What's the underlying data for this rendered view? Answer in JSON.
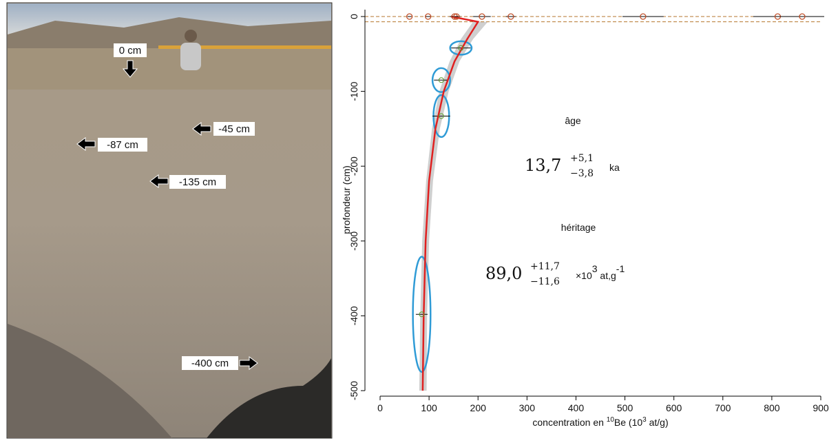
{
  "photo": {
    "labels": [
      "0 cm",
      "-45 cm",
      "-87 cm",
      "-135 cm",
      "-400 cm"
    ]
  },
  "chart_data": {
    "type": "profile",
    "x_label": {
      "pre": "concentration en ",
      "sup1": "10",
      "mid": "Be (10",
      "sup2": "3",
      "post": " at/g)"
    },
    "y_label": "profondeur (cm)",
    "xlim": [
      0,
      900
    ],
    "xticks": [
      0,
      100,
      200,
      300,
      400,
      500,
      600,
      700,
      800,
      900
    ],
    "ylim": [
      -500,
      0
    ],
    "yticks": [
      0,
      -100,
      -200,
      -300,
      -400,
      -500
    ],
    "reference_depths": [
      0,
      -7
    ],
    "reference_color": "#b5762d",
    "surface_samples": {
      "color": "#c0502a",
      "x": [
        60,
        98,
        152,
        156,
        208,
        267,
        537,
        812,
        862
      ],
      "x_error": [
        4,
        6,
        10,
        8,
        18,
        10,
        42,
        50,
        45
      ],
      "y": [
        0,
        0,
        0,
        0,
        0,
        0,
        0,
        0,
        0
      ]
    },
    "depth_samples": {
      "color": "#5a9a2a",
      "x": [
        165,
        125,
        125,
        85
      ],
      "y": [
        -42,
        -85,
        -133,
        -398
      ],
      "x_error": [
        20,
        15,
        18,
        12
      ],
      "ellipse_color": "#2f9bd6",
      "ellipse_x_error": [
        22,
        18,
        16,
        18
      ],
      "ellipse_y_error": [
        9,
        16,
        28,
        77
      ]
    },
    "model": {
      "color": "#e02020",
      "x": [
        145,
        200,
        178,
        152,
        130,
        113,
        100,
        93,
        89,
        87
      ],
      "y": [
        0,
        -7,
        -30,
        -60,
        -100,
        -150,
        -220,
        -300,
        -400,
        -500
      ]
    },
    "band": {
      "color": "#cfcfcf",
      "y": [
        -7,
        -30,
        -60,
        -100,
        -150,
        -220,
        -300,
        -400,
        -500
      ],
      "x_low": [
        190,
        165,
        142,
        121,
        106,
        94,
        86,
        82,
        80
      ],
      "x_high": [
        220,
        190,
        162,
        140,
        122,
        108,
        100,
        96,
        95
      ]
    },
    "annotations": {
      "age_title": "âge",
      "age_value": "13,7",
      "age_plus": "+5,1",
      "age_minus": "−3,8",
      "age_unit": "ka",
      "inh_title": "héritage",
      "inh_value": "89,0",
      "inh_plus": "+11,7",
      "inh_minus": "−11,6",
      "inh_unit": "×10",
      "inh_exp": "3",
      "inh_unit2": " at,g",
      "inh_exp2": "-1"
    }
  }
}
